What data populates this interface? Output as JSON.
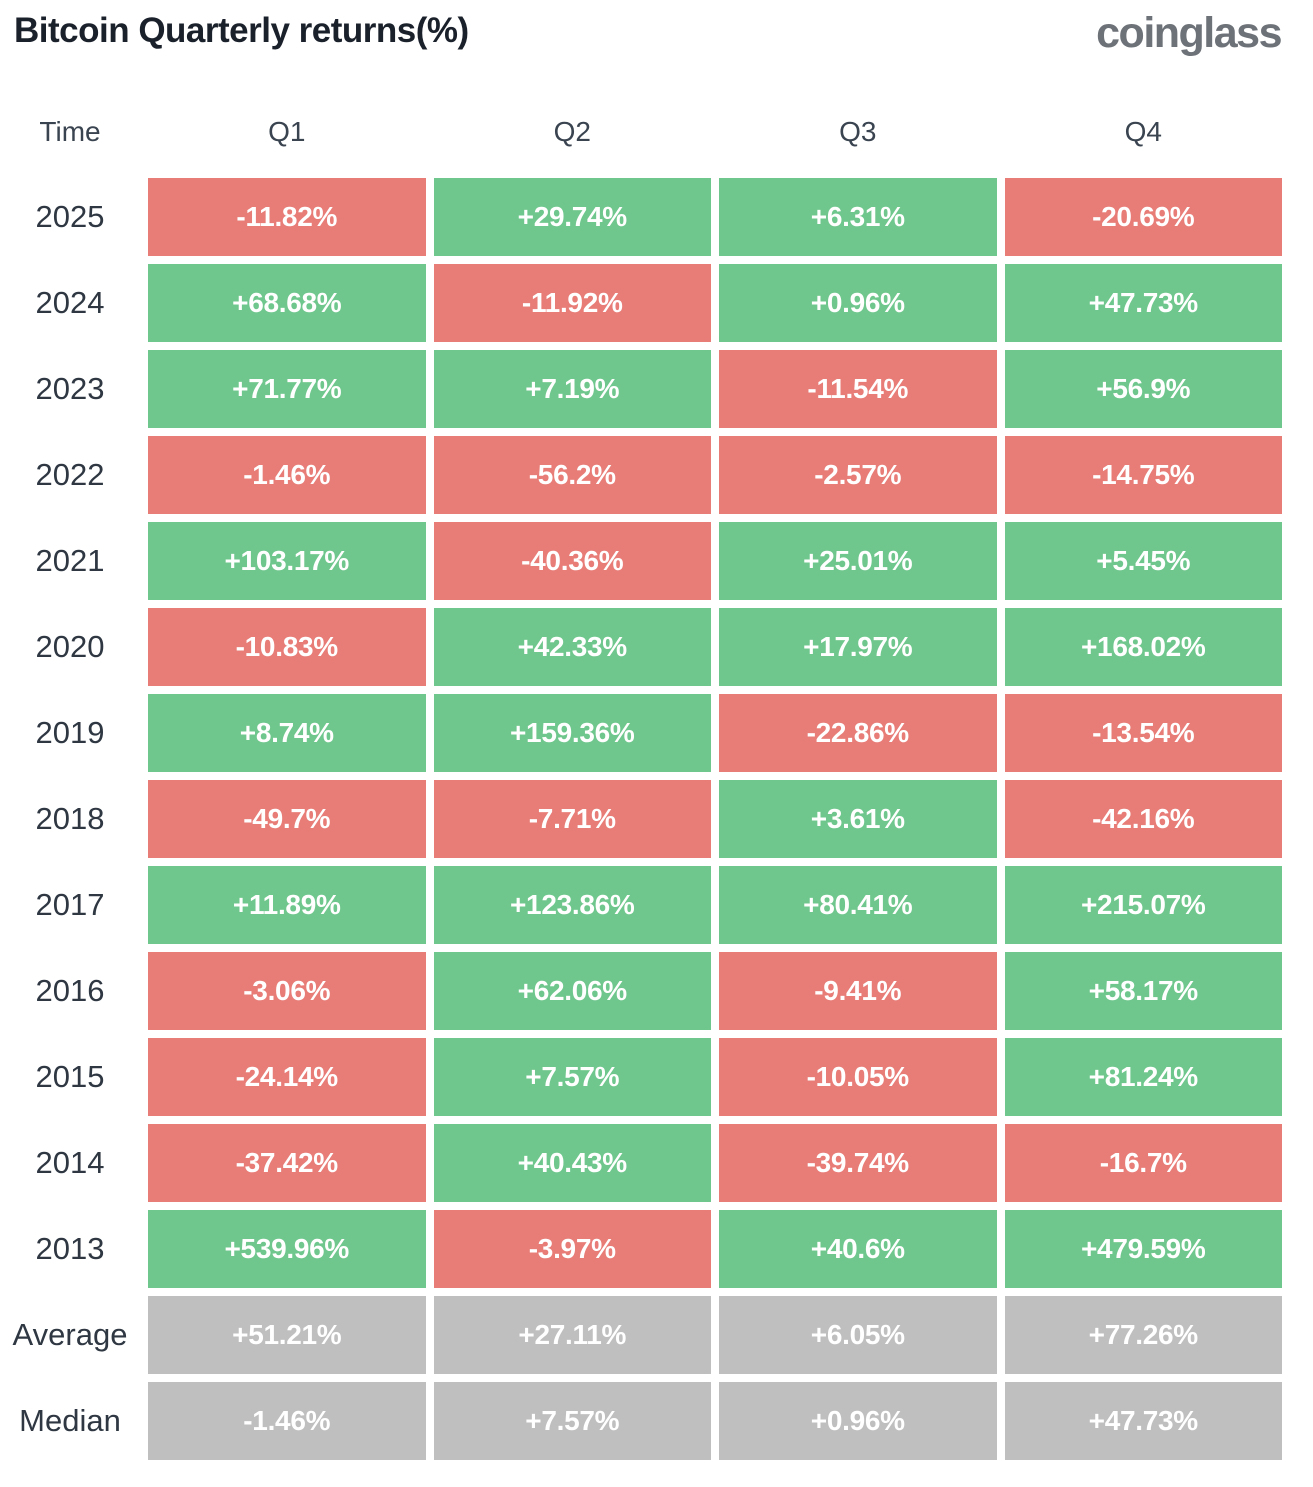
{
  "title": "Bitcoin Quarterly returns(%)",
  "logo_text": "coinglass",
  "colors": {
    "positive": "#6fc78d",
    "negative": "#e87c77",
    "neutral": "#bfbfbf"
  },
  "table": {
    "headers": [
      "Time",
      "Q1",
      "Q2",
      "Q3",
      "Q4"
    ],
    "rows": [
      {
        "label": "2025",
        "values": [
          "-11.82%",
          "+29.74%",
          "+6.31%",
          "-20.69%"
        ],
        "sentiment": [
          "negative",
          "positive",
          "positive",
          "negative"
        ]
      },
      {
        "label": "2024",
        "values": [
          "+68.68%",
          "-11.92%",
          "+0.96%",
          "+47.73%"
        ],
        "sentiment": [
          "positive",
          "negative",
          "positive",
          "positive"
        ]
      },
      {
        "label": "2023",
        "values": [
          "+71.77%",
          "+7.19%",
          "-11.54%",
          "+56.9%"
        ],
        "sentiment": [
          "positive",
          "positive",
          "negative",
          "positive"
        ]
      },
      {
        "label": "2022",
        "values": [
          "-1.46%",
          "-56.2%",
          "-2.57%",
          "-14.75%"
        ],
        "sentiment": [
          "negative",
          "negative",
          "negative",
          "negative"
        ]
      },
      {
        "label": "2021",
        "values": [
          "+103.17%",
          "-40.36%",
          "+25.01%",
          "+5.45%"
        ],
        "sentiment": [
          "positive",
          "negative",
          "positive",
          "positive"
        ]
      },
      {
        "label": "2020",
        "values": [
          "-10.83%",
          "+42.33%",
          "+17.97%",
          "+168.02%"
        ],
        "sentiment": [
          "negative",
          "positive",
          "positive",
          "positive"
        ]
      },
      {
        "label": "2019",
        "values": [
          "+8.74%",
          "+159.36%",
          "-22.86%",
          "-13.54%"
        ],
        "sentiment": [
          "positive",
          "positive",
          "negative",
          "negative"
        ]
      },
      {
        "label": "2018",
        "values": [
          "-49.7%",
          "-7.71%",
          "+3.61%",
          "-42.16%"
        ],
        "sentiment": [
          "negative",
          "negative",
          "positive",
          "negative"
        ]
      },
      {
        "label": "2017",
        "values": [
          "+11.89%",
          "+123.86%",
          "+80.41%",
          "+215.07%"
        ],
        "sentiment": [
          "positive",
          "positive",
          "positive",
          "positive"
        ]
      },
      {
        "label": "2016",
        "values": [
          "-3.06%",
          "+62.06%",
          "-9.41%",
          "+58.17%"
        ],
        "sentiment": [
          "negative",
          "positive",
          "negative",
          "positive"
        ]
      },
      {
        "label": "2015",
        "values": [
          "-24.14%",
          "+7.57%",
          "-10.05%",
          "+81.24%"
        ],
        "sentiment": [
          "negative",
          "positive",
          "negative",
          "positive"
        ]
      },
      {
        "label": "2014",
        "values": [
          "-37.42%",
          "+40.43%",
          "-39.74%",
          "-16.7%"
        ],
        "sentiment": [
          "negative",
          "positive",
          "negative",
          "negative"
        ]
      },
      {
        "label": "2013",
        "values": [
          "+539.96%",
          "-3.97%",
          "+40.6%",
          "+479.59%"
        ],
        "sentiment": [
          "positive",
          "negative",
          "positive",
          "positive"
        ]
      },
      {
        "label": "Average",
        "values": [
          "+51.21%",
          "+27.11%",
          "+6.05%",
          "+77.26%"
        ],
        "sentiment": [
          "neutral",
          "neutral",
          "neutral",
          "neutral"
        ]
      },
      {
        "label": "Median",
        "values": [
          "-1.46%",
          "+7.57%",
          "+0.96%",
          "+47.73%"
        ],
        "sentiment": [
          "neutral",
          "neutral",
          "neutral",
          "neutral"
        ]
      }
    ]
  },
  "chart_data": {
    "type": "heatmap",
    "title": "Bitcoin Quarterly returns(%)",
    "columns": [
      "Q1",
      "Q2",
      "Q3",
      "Q4"
    ],
    "rows": [
      "2025",
      "2024",
      "2023",
      "2022",
      "2021",
      "2020",
      "2019",
      "2018",
      "2017",
      "2016",
      "2015",
      "2014",
      "2013",
      "Average",
      "Median"
    ],
    "values_pct": [
      [
        -11.82,
        29.74,
        6.31,
        -20.69
      ],
      [
        68.68,
        -11.92,
        0.96,
        47.73
      ],
      [
        71.77,
        7.19,
        -11.54,
        56.9
      ],
      [
        -1.46,
        -56.2,
        -2.57,
        -14.75
      ],
      [
        103.17,
        -40.36,
        25.01,
        5.45
      ],
      [
        -10.83,
        42.33,
        17.97,
        168.02
      ],
      [
        8.74,
        159.36,
        -22.86,
        -13.54
      ],
      [
        -49.7,
        -7.71,
        3.61,
        -42.16
      ],
      [
        11.89,
        123.86,
        80.41,
        215.07
      ],
      [
        -3.06,
        62.06,
        -9.41,
        58.17
      ],
      [
        -24.14,
        7.57,
        -10.05,
        81.24
      ],
      [
        -37.42,
        40.43,
        -39.74,
        -16.7
      ],
      [
        539.96,
        -3.97,
        40.6,
        479.59
      ],
      [
        51.21,
        27.11,
        6.05,
        77.26
      ],
      [
        -1.46,
        7.57,
        0.96,
        47.73
      ]
    ],
    "color_coding": {
      "positive": "#6fc78d",
      "negative": "#e87c77",
      "aggregate_rows": "#bfbfbf"
    },
    "legend_position": "none",
    "grid": false
  }
}
